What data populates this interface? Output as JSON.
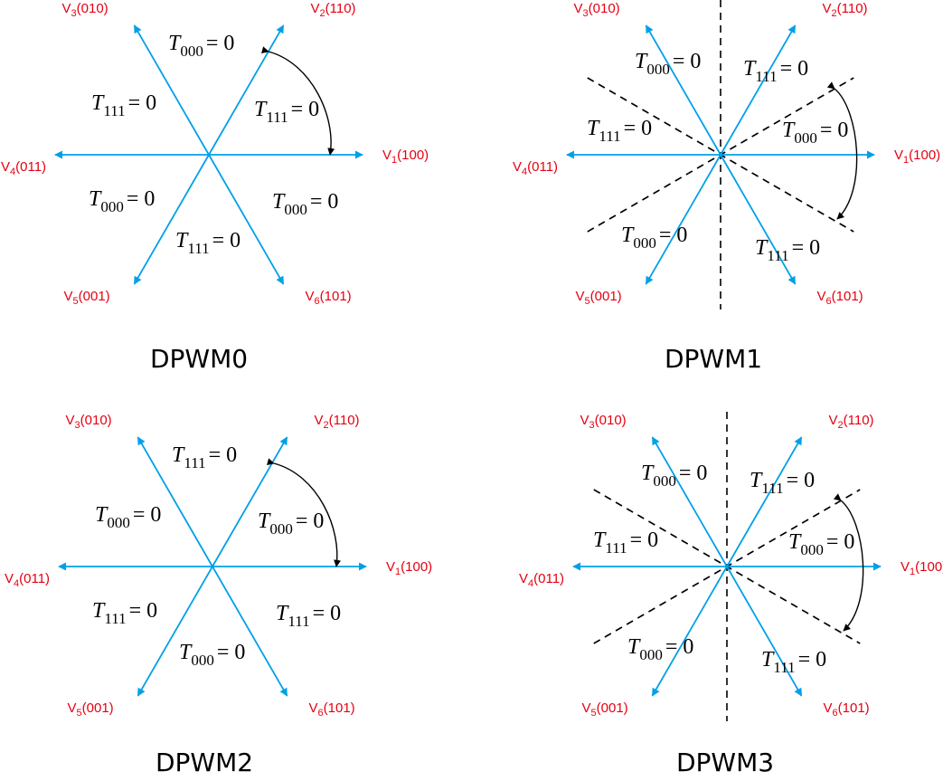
{
  "colors": {
    "vector": "#00a0e9",
    "vector_label": "#e60012",
    "text": "#000000",
    "dashed": "#000000"
  },
  "vector_labels": {
    "v1": {
      "letter": "V",
      "sub": "1",
      "code": "(100)"
    },
    "v2": {
      "letter": "V",
      "sub": "2",
      "code": "(110)"
    },
    "v3": {
      "letter": "V",
      "sub": "3",
      "code": "(010)"
    },
    "v4": {
      "letter": "V",
      "sub": "4",
      "code": "(011)"
    },
    "v5": {
      "letter": "V",
      "sub": "5",
      "code": "(001)"
    },
    "v6": {
      "letter": "V",
      "sub": "6",
      "code": "(101)"
    }
  },
  "terms": {
    "t000": {
      "letter": "T",
      "sub": "000",
      "eq": "= 0"
    },
    "t111": {
      "letter": "T",
      "sub": "111",
      "eq": "= 0"
    }
  },
  "diagrams": [
    {
      "title": "DPWM0",
      "dashed_lines": false,
      "sectors": [
        "t000",
        "t111",
        "t000",
        "t111",
        "t000",
        "t111"
      ]
    },
    {
      "title": "DPWM1",
      "dashed_lines": true,
      "sectors": [
        "t000",
        "t111",
        "t000",
        "t111",
        "t000",
        "t111"
      ]
    },
    {
      "title": "DPWM2",
      "dashed_lines": false,
      "sectors": [
        "t111",
        "t000",
        "t111",
        "t000",
        "t111",
        "t000"
      ]
    },
    {
      "title": "DPWM3",
      "dashed_lines": true,
      "sectors": [
        "t000",
        "t111",
        "t000",
        "t111",
        "t000",
        "t111"
      ]
    }
  ]
}
